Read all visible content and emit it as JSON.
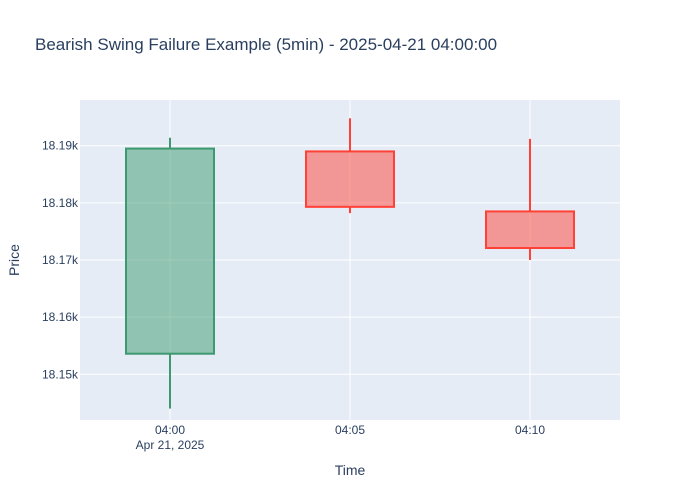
{
  "chart_data": {
    "type": "candlestick",
    "title": "Bearish Swing Failure Example (5min) - 2025-04-21 04:00:00",
    "xlabel": "Time",
    "ylabel": "Price",
    "x_categories": [
      "04:00",
      "04:05",
      "04:10"
    ],
    "x_sublabels": [
      "Apr 21, 2025",
      "",
      ""
    ],
    "y_ticks": [
      18150,
      18160,
      18170,
      18180,
      18190
    ],
    "y_tick_labels": [
      "18.15k",
      "18.16k",
      "18.17k",
      "18.18k",
      "18.19k"
    ],
    "ylim": [
      18142,
      18198
    ],
    "grid": true,
    "legend": "none",
    "colors": {
      "increasing": "#3d9970",
      "increasing_fill": "rgba(61,153,112,0.5)",
      "decreasing": "#ff4136",
      "decreasing_fill": "rgba(255,65,54,0.5)",
      "plot_bg": "#e5ecf6",
      "grid": "#ffffff",
      "text": "#2a3f5f"
    },
    "candles": [
      {
        "x": "04:00",
        "open": 18153.6,
        "high": 18191.4,
        "low": 18144.0,
        "close": 18189.5
      },
      {
        "x": "04:05",
        "open": 18189.0,
        "high": 18194.8,
        "low": 18178.2,
        "close": 18179.3
      },
      {
        "x": "04:10",
        "open": 18178.5,
        "high": 18191.2,
        "low": 18170.0,
        "close": 18172.1
      }
    ]
  }
}
